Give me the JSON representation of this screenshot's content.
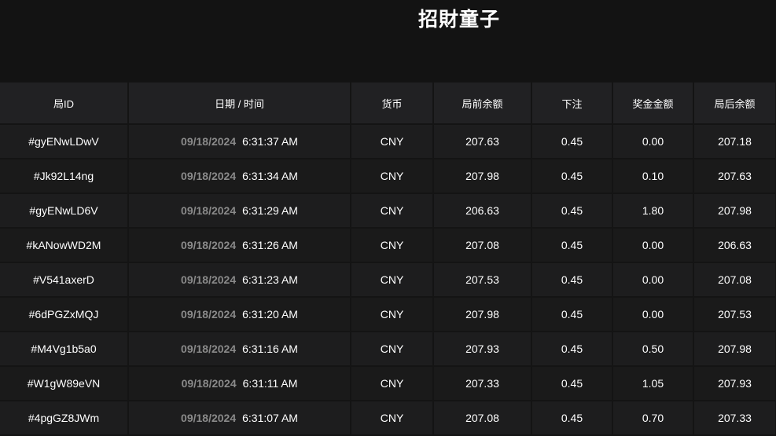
{
  "header": {
    "title": "招財童子"
  },
  "table": {
    "columns": [
      "局ID",
      "日期 / 时间",
      "货币",
      "局前余额",
      "下注",
      "奖金金额",
      "局后余额"
    ],
    "rows": [
      {
        "id": "#gyENwLDwV",
        "date": "09/18/2024",
        "time": "6:31:37 AM",
        "currency": "CNY",
        "before": "207.63",
        "bet": "0.45",
        "win": "0.00",
        "after": "207.18"
      },
      {
        "id": "#Jk92L14ng",
        "date": "09/18/2024",
        "time": "6:31:34 AM",
        "currency": "CNY",
        "before": "207.98",
        "bet": "0.45",
        "win": "0.10",
        "after": "207.63"
      },
      {
        "id": "#gyENwLD6V",
        "date": "09/18/2024",
        "time": "6:31:29 AM",
        "currency": "CNY",
        "before": "206.63",
        "bet": "0.45",
        "win": "1.80",
        "after": "207.98"
      },
      {
        "id": "#kANowWD2M",
        "date": "09/18/2024",
        "time": "6:31:26 AM",
        "currency": "CNY",
        "before": "207.08",
        "bet": "0.45",
        "win": "0.00",
        "after": "206.63"
      },
      {
        "id": "#V541axerD",
        "date": "09/18/2024",
        "time": "6:31:23 AM",
        "currency": "CNY",
        "before": "207.53",
        "bet": "0.45",
        "win": "0.00",
        "after": "207.08"
      },
      {
        "id": "#6dPGZxMQJ",
        "date": "09/18/2024",
        "time": "6:31:20 AM",
        "currency": "CNY",
        "before": "207.98",
        "bet": "0.45",
        "win": "0.00",
        "after": "207.53"
      },
      {
        "id": "#M4Vg1b5a0",
        "date": "09/18/2024",
        "time": "6:31:16 AM",
        "currency": "CNY",
        "before": "207.93",
        "bet": "0.45",
        "win": "0.50",
        "after": "207.98"
      },
      {
        "id": "#W1gW89eVN",
        "date": "09/18/2024",
        "time": "6:31:11 AM",
        "currency": "CNY",
        "before": "207.33",
        "bet": "0.45",
        "win": "1.05",
        "after": "207.93"
      },
      {
        "id": "#4pgGZ8JWm",
        "date": "09/18/2024",
        "time": "6:31:07 AM",
        "currency": "CNY",
        "before": "207.08",
        "bet": "0.45",
        "win": "0.70",
        "after": "207.33"
      }
    ]
  }
}
